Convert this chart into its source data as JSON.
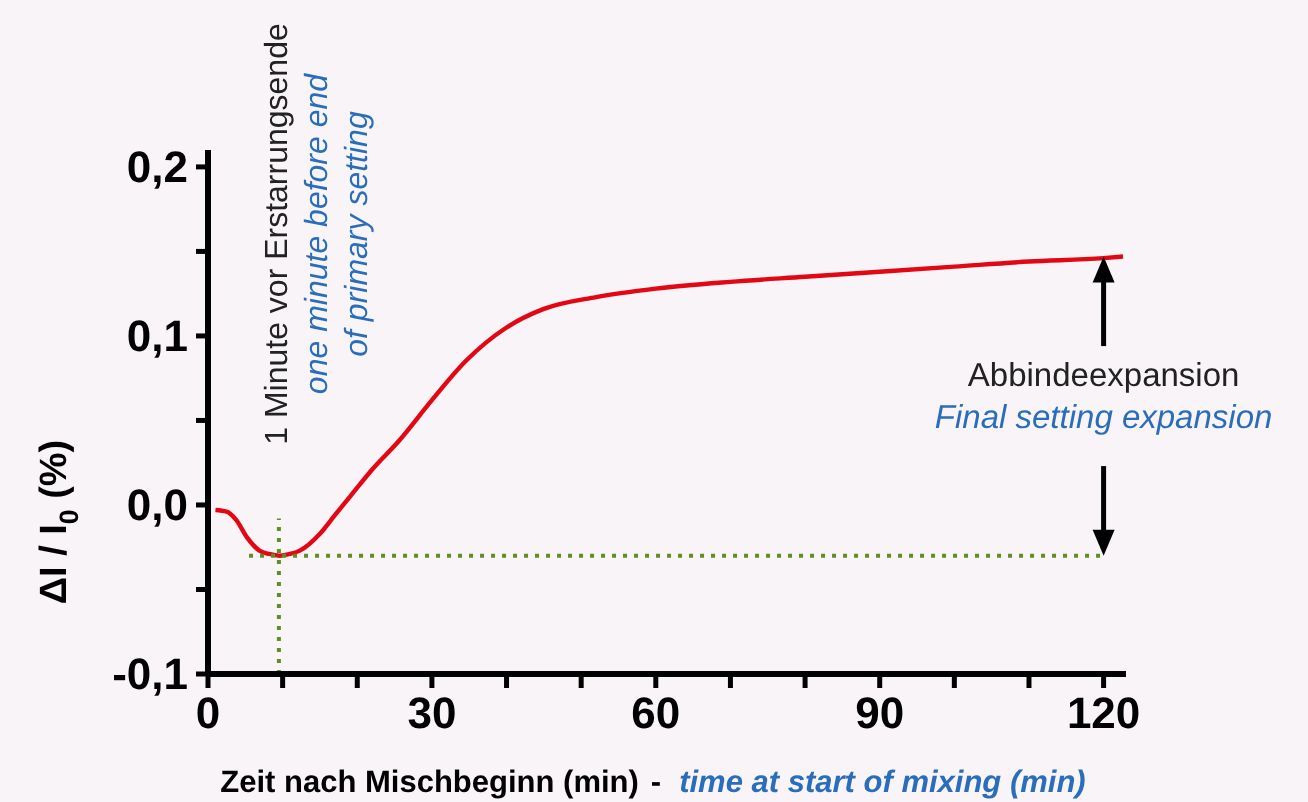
{
  "chart_data": {
    "type": "line",
    "xlabel": "Zeit nach Mischbeginn (min) - time at start of mixing (min)",
    "ylabel": "ΔI / I$_{0}$ (%)",
    "annotations": [
      "1 Minute vor Erstarrungsende",
      "one minute before end",
      "of primary setting",
      "Abbindeexpansion",
      "Final setting expansion"
    ],
    "series": [
      {
        "color": "#e30613",
        "x": [
          1,
          2.5,
          3.8,
          5.2,
          6.9,
          8.2,
          9.6,
          11,
          12.3,
          15,
          17,
          19.4,
          22,
          25.6,
          30,
          34.5,
          40,
          45,
          52,
          60,
          70,
          80,
          90,
          100,
          110,
          120,
          122.6
        ],
        "values": [
          -0.003,
          -0.004,
          -0.009,
          -0.019,
          -0.027,
          -0.029,
          -0.03,
          -0.029,
          -0.027,
          -0.017,
          -0.006,
          0.007,
          0.021,
          0.038,
          0.062,
          0.085,
          0.105,
          0.116,
          0.123,
          0.128,
          0.132,
          0.135,
          0.138,
          0.141,
          0.144,
          0.146,
          0.147
        ]
      },
      {
        "color": "#5e8f23",
        "line_style": "dotted",
        "x": [
          9.5,
          9.5
        ],
        "values": [
          -0.1,
          -0.008
        ]
      },
      {
        "color": "#5e8f23",
        "line_style": "dotted",
        "x": [
          5.5,
          120
        ],
        "values": [
          -0.03,
          -0.03
        ]
      }
    ],
    "xlim": [
      0,
      123
    ],
    "xticks": [
      0,
      {
        "value": 10,
        "label": null
      },
      {
        "value": 20,
        "label": null
      },
      30,
      {
        "value": 40,
        "label": null
      },
      {
        "value": 50,
        "label": null
      },
      60,
      {
        "value": 70,
        "label": null
      },
      {
        "value": 80,
        "label": null
      },
      90,
      {
        "value": 100,
        "label": null
      },
      {
        "value": 110,
        "label": null
      },
      120
    ],
    "ylim": [
      -0.1,
      0.21
    ],
    "yticks": [
      {
        "value": -0.1,
        "label": "-0,1"
      },
      {
        "value": -0.05,
        "label": null
      },
      {
        "value": 0,
        "label": "0,0"
      },
      {
        "value": 0.05,
        "label": null
      },
      {
        "value": 0.1,
        "label": "0,1"
      },
      {
        "value": 0.15,
        "label": null
      },
      {
        "value": 0.2,
        "label": "0,2"
      }
    ],
    "line_style": "solid"
  }
}
